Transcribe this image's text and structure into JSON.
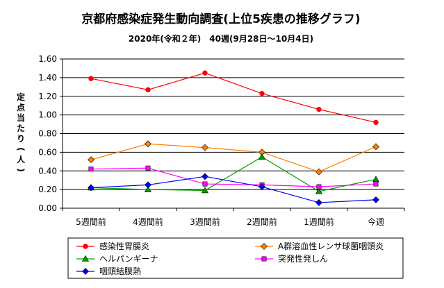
{
  "chart_data": {
    "type": "line",
    "title": "京都府感染症発生動向調査(上位5疾患の推移グラフ)",
    "subtitle": "2020年(令和２年)　40週(9月28日～10月4日)",
    "ylabel": "定点当たり(人)",
    "xlabel": "",
    "categories": [
      "5週間前",
      "4週間前",
      "3週間前",
      "2週間前",
      "1週間前",
      "今週"
    ],
    "ylim": [
      0,
      1.6
    ],
    "yticks": [
      "0.00",
      "0.20",
      "0.40",
      "0.60",
      "0.80",
      "1.00",
      "1.20",
      "1.40",
      "1.60"
    ],
    "grid": true,
    "legend_position": "bottom",
    "series": [
      {
        "name": "感染性胃腸炎",
        "values": [
          1.39,
          1.27,
          1.45,
          1.23,
          1.06,
          0.92
        ],
        "color": "#ff0000",
        "marker": "circle"
      },
      {
        "name": "A群溶血性レンサ球菌咽頭炎",
        "values": [
          0.52,
          0.69,
          0.65,
          0.6,
          0.39,
          0.66
        ],
        "color": "#ff8000",
        "marker": "diamond"
      },
      {
        "name": "ヘルパンギーナ",
        "values": [
          0.22,
          0.2,
          0.19,
          0.55,
          0.18,
          0.31
        ],
        "color": "#00a000",
        "marker": "triangle"
      },
      {
        "name": "突発性発しん",
        "values": [
          0.42,
          0.43,
          0.26,
          0.25,
          0.23,
          0.26
        ],
        "color": "#ff00ff",
        "marker": "square"
      },
      {
        "name": "咽頭結膜熱",
        "values": [
          0.22,
          0.25,
          0.34,
          0.23,
          0.06,
          0.09
        ],
        "color": "#0000ff",
        "marker": "diamond"
      }
    ]
  }
}
